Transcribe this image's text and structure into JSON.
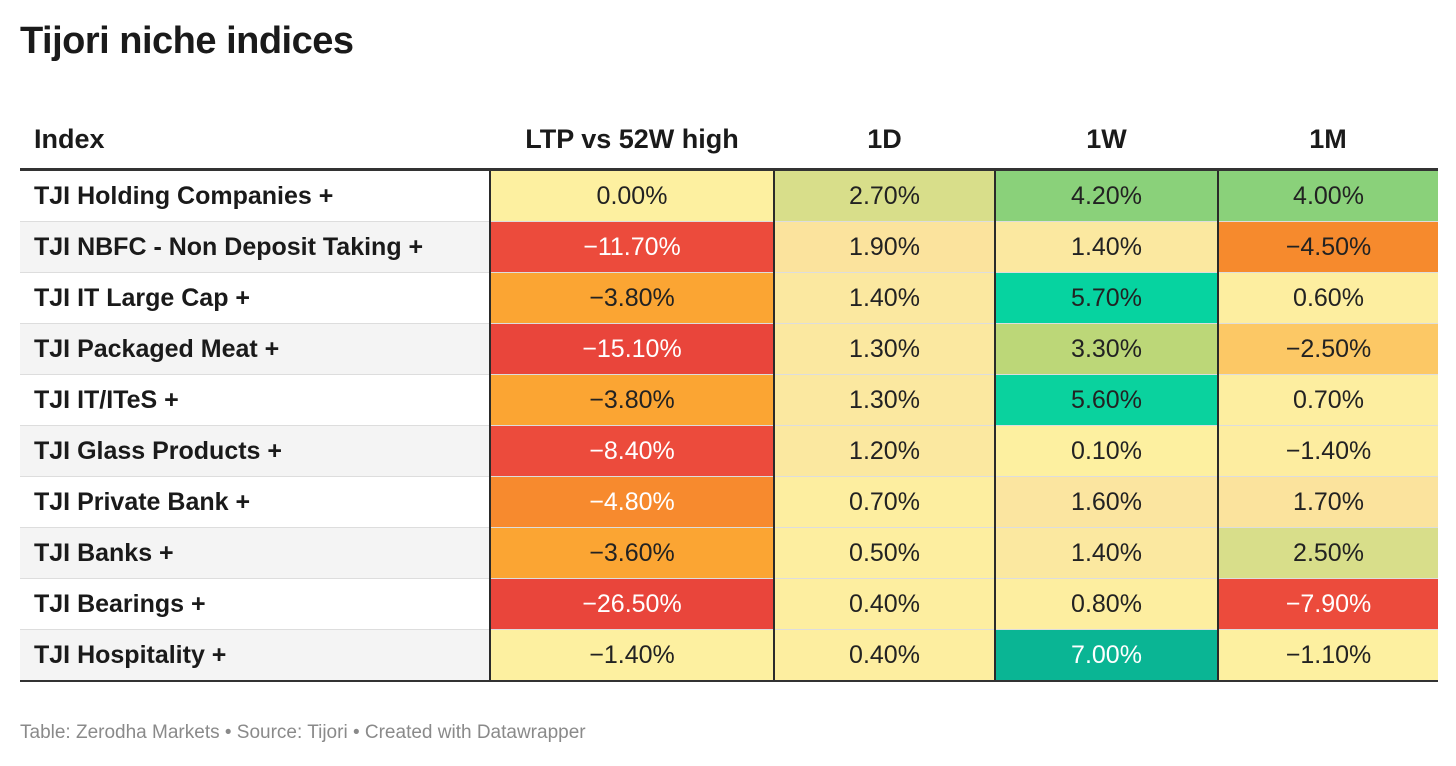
{
  "title": "Tijori niche indices",
  "footer": "Table: Zerodha Markets • Source: Tijori • Created with Datawrapper",
  "chart_data": {
    "type": "table",
    "title": "Tijori niche indices",
    "columns": [
      "Index",
      "LTP vs 52W high",
      "1D",
      "1W",
      "1M"
    ],
    "rows": [
      {
        "name": "TJI Holding Companies +",
        "values": [
          "0.00%",
          "2.70%",
          "4.20%",
          "4.00%"
        ],
        "colors": [
          "#fdf0a0",
          "#d8de8a",
          "#8ad17a",
          "#8ad17a"
        ]
      },
      {
        "name": "TJI NBFC - Non Deposit Taking +",
        "values": [
          "−11.70%",
          "1.90%",
          "1.40%",
          "−4.50%"
        ],
        "colors": [
          "#ec4b3c",
          "#fbe39d",
          "#fbe8a0",
          "#f68a2d"
        ]
      },
      {
        "name": "TJI IT Large Cap +",
        "values": [
          "−3.80%",
          "1.40%",
          "5.70%",
          "0.60%"
        ],
        "colors": [
          "#fba533",
          "#fbe8a0",
          "#06d3a0",
          "#fdeea0"
        ]
      },
      {
        "name": "TJI Packaged Meat +",
        "values": [
          "−15.10%",
          "1.30%",
          "3.30%",
          "−2.50%"
        ],
        "colors": [
          "#e9453b",
          "#fbe8a0",
          "#bcd778",
          "#fcc865"
        ]
      },
      {
        "name": "TJI IT/ITeS +",
        "values": [
          "−3.80%",
          "1.30%",
          "5.60%",
          "0.70%"
        ],
        "colors": [
          "#fba533",
          "#fbe8a0",
          "#0ad29e",
          "#fdeea0"
        ]
      },
      {
        "name": "TJI Glass Products +",
        "values": [
          "−8.40%",
          "1.20%",
          "0.10%",
          "−1.40%"
        ],
        "colors": [
          "#ec4b3c",
          "#fbe8a0",
          "#fdf0a0",
          "#fdeda0"
        ]
      },
      {
        "name": "TJI Private Bank +",
        "values": [
          "−4.80%",
          "0.70%",
          "1.60%",
          "1.70%"
        ],
        "colors": [
          "#f78a2e",
          "#fdeea0",
          "#fbe5a0",
          "#fbe39d"
        ]
      },
      {
        "name": "TJI Banks +",
        "values": [
          "−3.60%",
          "0.50%",
          "1.40%",
          "2.50%"
        ],
        "colors": [
          "#fba533",
          "#fdeea0",
          "#fbe8a0",
          "#d8de8a"
        ]
      },
      {
        "name": "TJI Bearings +",
        "values": [
          "−26.50%",
          "0.40%",
          "0.80%",
          "−7.90%"
        ],
        "colors": [
          "#e9453b",
          "#fdeea0",
          "#fdeea0",
          "#ec4b3c"
        ]
      },
      {
        "name": "TJI Hospitality +",
        "values": [
          "−1.40%",
          "0.40%",
          "7.00%",
          "−1.10%"
        ],
        "colors": [
          "#fdf0a0",
          "#fdeea0",
          "#0ab594",
          "#fdf0a0"
        ]
      }
    ],
    "white_text_cells": [
      [
        1,
        0
      ],
      [
        3,
        0
      ],
      [
        5,
        0
      ],
      [
        6,
        0
      ],
      [
        8,
        0
      ],
      [
        9,
        2
      ],
      [
        8,
        3
      ]
    ]
  }
}
